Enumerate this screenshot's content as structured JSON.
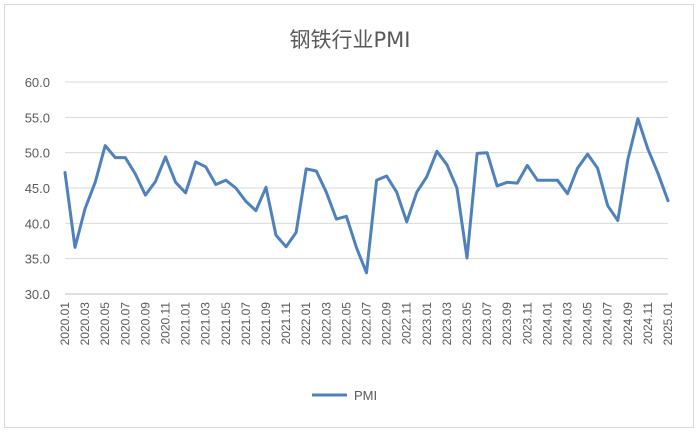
{
  "chart_data": {
    "type": "line",
    "title": "钢铁行业PMI",
    "xlabel": "",
    "ylabel": "",
    "ylim": [
      30,
      60
    ],
    "yticks": [
      "30.0",
      "35.0",
      "40.0",
      "45.0",
      "50.0",
      "55.0",
      "60.0"
    ],
    "grid": true,
    "legend_position": "bottom",
    "line_color": "#4f81bd",
    "x": [
      "2020.01",
      "2020.02",
      "2020.03",
      "2020.04",
      "2020.05",
      "2020.06",
      "2020.07",
      "2020.08",
      "2020.09",
      "2020.10",
      "2020.11",
      "2020.12",
      "2021.01",
      "2021.02",
      "2021.03",
      "2021.04",
      "2021.05",
      "2021.06",
      "2021.07",
      "2021.08",
      "2021.09",
      "2021.10",
      "2021.11",
      "2021.12",
      "2022.01",
      "2022.02",
      "2022.03",
      "2022.04",
      "2022.05",
      "2022.06",
      "2022.07",
      "2022.08",
      "2022.09",
      "2022.10",
      "2022.11",
      "2022.12",
      "2023.01",
      "2023.02",
      "2023.03",
      "2023.04",
      "2023.05",
      "2023.06",
      "2023.07",
      "2023.08",
      "2023.09",
      "2023.10",
      "2023.11",
      "2023.12",
      "2024.01",
      "2024.02",
      "2024.03",
      "2024.04",
      "2024.05",
      "2024.06",
      "2024.07",
      "2024.08",
      "2024.09",
      "2024.10",
      "2024.11",
      "2024.12",
      "2025.01"
    ],
    "series": [
      {
        "name": "PMI",
        "values": [
          47.2,
          36.6,
          42.1,
          45.8,
          51.0,
          49.3,
          49.3,
          47.0,
          44.0,
          45.9,
          49.4,
          45.8,
          44.3,
          48.7,
          48.0,
          45.5,
          46.1,
          45.0,
          43.1,
          41.8,
          45.1,
          38.3,
          36.7,
          38.7,
          47.7,
          47.4,
          44.4,
          40.6,
          41.0,
          36.6,
          33.0,
          46.1,
          46.7,
          44.4,
          40.2,
          44.4,
          46.6,
          50.2,
          48.3,
          45.0,
          35.1,
          49.9,
          50.0,
          45.3,
          45.8,
          45.7,
          48.2,
          46.1,
          46.1,
          46.1,
          44.2,
          47.8,
          49.8,
          47.8,
          42.5,
          40.4,
          49.0,
          54.8,
          50.5,
          47.1,
          43.2
        ]
      }
    ],
    "xtick_labels": [
      "2020.01",
      "2020.03",
      "2020.05",
      "2020.07",
      "2020.09",
      "2020.11",
      "2021.01",
      "2021.03",
      "2021.05",
      "2021.07",
      "2021.09",
      "2021.11",
      "2022.01",
      "2022.03",
      "2022.05",
      "2022.07",
      "2022.09",
      "2022.11",
      "2023.01",
      "2023.03",
      "2023.05",
      "2023.07",
      "2023.09",
      "2023.11",
      "2024.01",
      "2024.03",
      "2024.05",
      "2024.07",
      "2024.09",
      "2024.11",
      "2025.01"
    ]
  }
}
